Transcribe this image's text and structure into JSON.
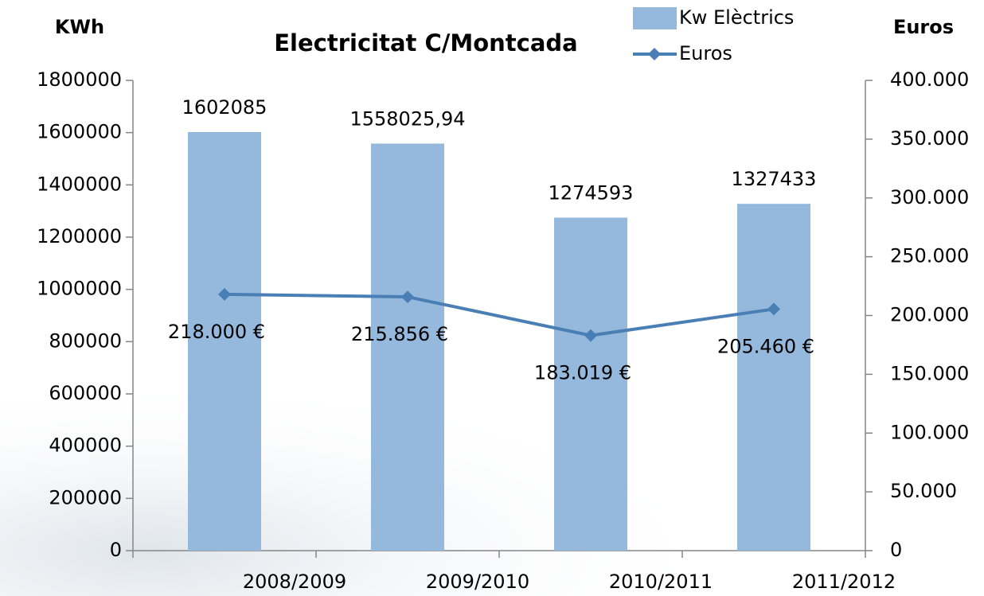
{
  "chart_data": {
    "type": "bar_line",
    "title": "Electricitat C/Montcada",
    "y_label": "KWh",
    "y2_label": "Euros",
    "categories": [
      "2008/2009",
      "2009/2010",
      "2010/2011",
      "2011/2012"
    ],
    "series": [
      {
        "name": "Kw Elèctrics",
        "type": "bar",
        "color": "#95b8dd",
        "axis": "y",
        "values": [
          1602085,
          1558025.94,
          1274593,
          1327433
        ],
        "value_labels": [
          "1602085",
          "1558025,94",
          "1274593",
          "1327433"
        ]
      },
      {
        "name": "Euros",
        "type": "line",
        "color": "#4a7fb5",
        "axis": "y2",
        "values": [
          218000,
          215856,
          183019,
          205460
        ],
        "value_labels": [
          "218.000 €",
          "215.856 €",
          "183.019 €",
          "205.460 €"
        ]
      }
    ],
    "ylim": [
      0,
      1800000
    ],
    "yticks": [
      0,
      200000,
      400000,
      600000,
      800000,
      1000000,
      1200000,
      1400000,
      1600000,
      1800000
    ],
    "y2lim": [
      0,
      400000
    ],
    "y2ticks": [
      0,
      {
        "value": 50000,
        "label": "50.000"
      },
      {
        "value": 100000,
        "label": "100.000"
      },
      {
        "value": 150000,
        "label": "150.000"
      },
      {
        "value": 200000,
        "label": "200.000"
      },
      {
        "value": 250000,
        "label": "250.000"
      },
      {
        "value": 300000,
        "label": "300.000"
      },
      {
        "value": 350000,
        "label": "350.000"
      },
      {
        "value": 400000,
        "label": "400.000"
      }
    ],
    "legend": "top-right"
  }
}
